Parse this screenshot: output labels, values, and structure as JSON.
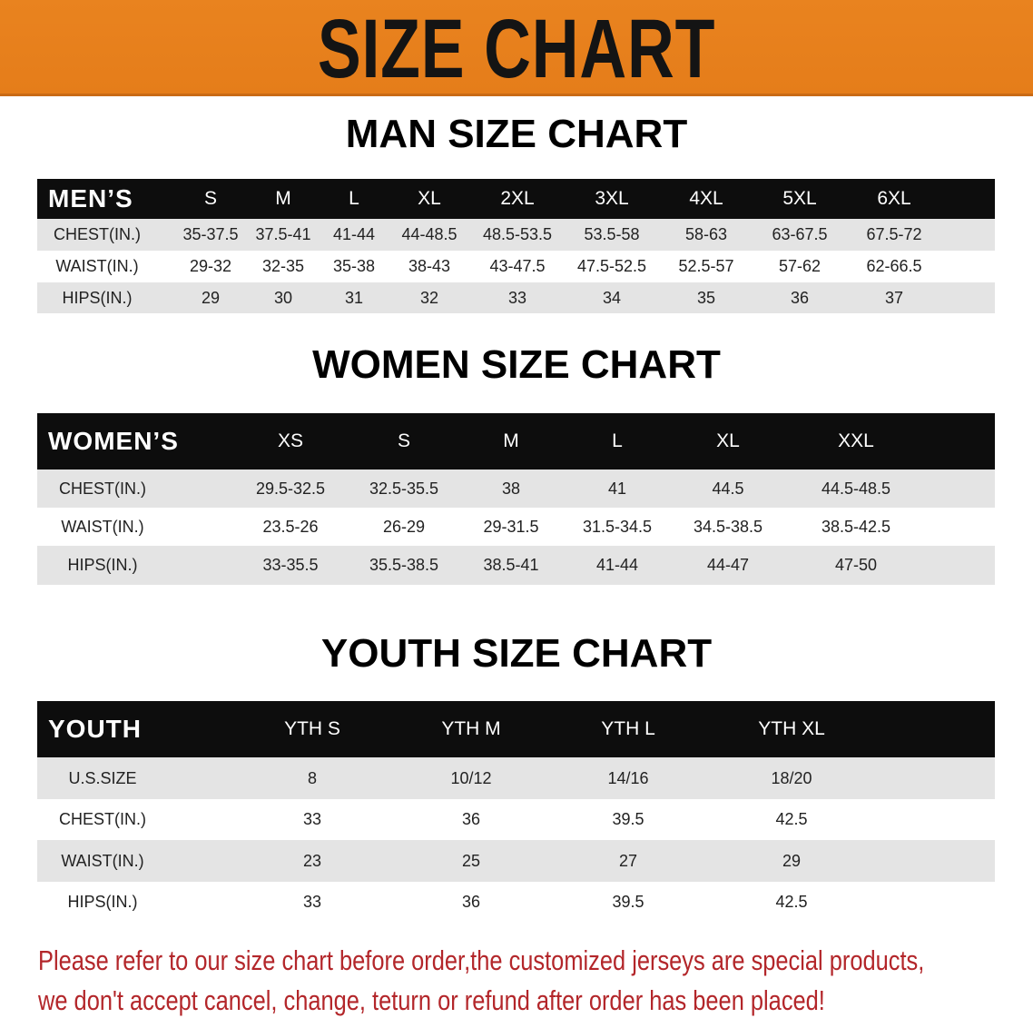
{
  "banner": {
    "title": "SIZE CHART",
    "color": "#e8801f"
  },
  "men": {
    "title": "MAN SIZE CHART",
    "header": [
      "MEN’S",
      "S",
      "M",
      "L",
      "XL",
      "2XL",
      "3XL",
      "4XL",
      "5XL",
      "6XL"
    ],
    "rows": [
      [
        "CHEST(IN.)",
        "35-37.5",
        "37.5-41",
        "41-44",
        "44-48.5",
        "48.5-53.5",
        "53.5-58",
        "58-63",
        "63-67.5",
        "67.5-72"
      ],
      [
        "WAIST(IN.)",
        "29-32",
        "32-35",
        "35-38",
        "38-43",
        "43-47.5",
        "47.5-52.5",
        "52.5-57",
        "57-62",
        "62-66.5"
      ],
      [
        "HIPS(IN.)",
        "29",
        "30",
        "31",
        "32",
        "33",
        "34",
        "35",
        "36",
        "37"
      ]
    ]
  },
  "women": {
    "title": "WOMEN SIZE CHART",
    "header": [
      "WOMEN’S",
      "XS",
      "S",
      "M",
      "L",
      "XL",
      "XXL"
    ],
    "rows": [
      [
        "CHEST(IN.)",
        "29.5-32.5",
        "32.5-35.5",
        "38",
        "41",
        "44.5",
        "44.5-48.5"
      ],
      [
        "WAIST(IN.)",
        "23.5-26",
        "26-29",
        "29-31.5",
        "31.5-34.5",
        "34.5-38.5",
        "38.5-42.5"
      ],
      [
        "HIPS(IN.)",
        "33-35.5",
        "35.5-38.5",
        "38.5-41",
        "41-44",
        "44-47",
        "47-50"
      ]
    ]
  },
  "youth": {
    "title": "YOUTH SIZE CHART",
    "header": [
      "YOUTH",
      "YTH S",
      "YTH M",
      "YTH L",
      "YTH XL"
    ],
    "rows": [
      [
        "U.S.SIZE",
        "8",
        "10/12",
        "14/16",
        "18/20"
      ],
      [
        "CHEST(IN.)",
        "33",
        "36",
        "39.5",
        "42.5"
      ],
      [
        "WAIST(IN.)",
        "23",
        "25",
        "27",
        "29"
      ],
      [
        "HIPS(IN.)",
        "33",
        "36",
        "39.5",
        "42.5"
      ]
    ]
  },
  "notice": {
    "line1": "Please refer to our size chart before order,the customized jerseys are special products,",
    "line2": "we don't accept cancel, change, teturn or refund after order has been placed!",
    "color": "#b3262a"
  }
}
